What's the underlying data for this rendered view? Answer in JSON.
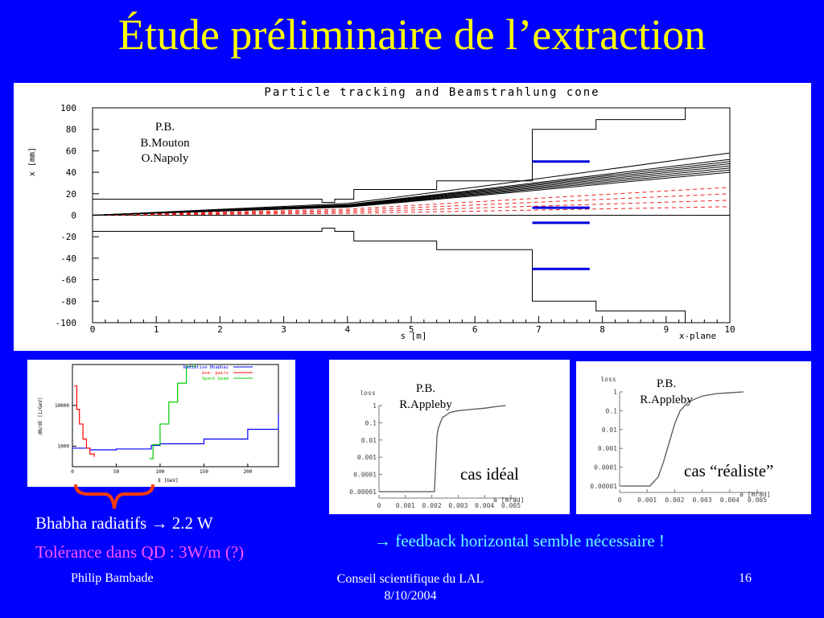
{
  "slide": {
    "title": "Étude préliminaire de l’extraction",
    "footer_left": "Philip Bambade",
    "footer_center_line1": "Conseil scientifique du LAL",
    "footer_center_line2": "8/10/2004",
    "page_number": "16"
  },
  "colors": {
    "background": "#0000ff",
    "title": "#ffff00",
    "highlight": "#ff55ff",
    "feedback": "#66ffff",
    "brace": "#ff3b00"
  },
  "tracking_plot": {
    "authors": [
      "P.B.",
      "B.Mouton",
      "O.Napoly"
    ],
    "chart_data": {
      "type": "line",
      "title": "Particle tracking and Beamstrahlung cone",
      "xlabel": "s [m]",
      "ylabel": "x [mm]",
      "corner_label": "x-plane",
      "xlim": [
        0,
        10
      ],
      "ylim": [
        -100,
        100
      ],
      "x_ticks": [
        "0",
        "1",
        "2",
        "3",
        "4",
        "5",
        "6",
        "7",
        "8",
        "9",
        "10"
      ],
      "y_ticks": [
        "100",
        "80",
        "60",
        "40",
        "20",
        "0",
        "-20",
        "-40",
        "-60",
        "-80",
        "-100"
      ],
      "aperture_upper": {
        "x": [
          0,
          3.6,
          3.6,
          3.8,
          3.8,
          4.1,
          4.1,
          5.4,
          5.4,
          6.9,
          6.9,
          7.9,
          7.9,
          9.3,
          9.3,
          10
        ],
        "y": [
          15,
          15,
          12,
          12,
          15,
          15,
          24,
          24,
          32,
          32,
          80,
          80,
          89,
          89,
          100,
          100
        ]
      },
      "aperture_lower": {
        "x": [
          0,
          3.6,
          3.6,
          3.8,
          3.8,
          4.1,
          4.1,
          5.4,
          5.4,
          6.9,
          6.9,
          7.9,
          7.9,
          9.3,
          9.3,
          10
        ],
        "y": [
          -15,
          -15,
          -12,
          -12,
          -15,
          -15,
          -24,
          -24,
          -32,
          -32,
          -80,
          -80,
          -89,
          -89,
          -100,
          -100
        ]
      },
      "beam_fan_end_values": [
        58,
        52,
        50,
        48,
        46,
        44,
        42,
        40
      ],
      "beamstrahlung_cone_end_values": [
        26,
        20,
        14,
        8
      ],
      "highlight_segments": [
        {
          "x": [
            6.9,
            7.8
          ],
          "y": 50
        },
        {
          "x": [
            6.9,
            7.8
          ],
          "y": 7
        },
        {
          "x": [
            6.9,
            7.8
          ],
          "y": -7
        },
        {
          "x": [
            6.9,
            7.8
          ],
          "y": -50
        }
      ]
    }
  },
  "spectrum_plot": {
    "chart_data": {
      "type": "line",
      "xlabel": "E [GeV]",
      "ylabel": "dN/dE [1/GeV]",
      "x_ticks": [
        "0",
        "50",
        "100",
        "150",
        "200"
      ],
      "y_ticks": [
        "10000",
        "1000"
      ],
      "legend_position": "top-right",
      "series": [
        {
          "name": "Radiative Bhabhas",
          "color": "#0000ff",
          "x": [
            0,
            20,
            50,
            90,
            100,
            150,
            200,
            235
          ],
          "y": [
            900,
            820,
            860,
            1050,
            1150,
            1500,
            2600,
            6500
          ]
        },
        {
          "name": "e+e- pairs",
          "color": "#ff0000",
          "x": [
            2,
            5,
            8,
            12,
            16,
            20,
            25
          ],
          "y": [
            30000,
            8000,
            3500,
            1500,
            900,
            650,
            550
          ]
        },
        {
          "name": "Spent beam",
          "color": "#00cc00",
          "x": [
            88,
            92,
            100,
            110,
            120,
            130,
            140
          ],
          "y": [
            500,
            1100,
            3500,
            12000,
            35000,
            90000,
            200000
          ]
        }
      ]
    }
  },
  "loss_ideal": {
    "authors": [
      "P.B.",
      "R.Appleby"
    ],
    "caption": "cas idéal",
    "chart_data": {
      "type": "line",
      "ylabel": "loss",
      "xlabel": "a [mrad]",
      "x_ticks": [
        "0",
        "0.001",
        "0.002",
        "0.003",
        "0.004",
        "0.005"
      ],
      "y_ticks": [
        "1",
        "0.1",
        "0.01",
        "0.001",
        "0.0001",
        "0.00001"
      ],
      "x": [
        0,
        0.0021,
        0.0022,
        0.00225,
        0.0024,
        0.0027,
        0.003,
        0.0035,
        0.004,
        0.0045,
        0.0048
      ],
      "y": [
        1e-05,
        1e-05,
        0.02,
        0.05,
        0.2,
        0.4,
        0.5,
        0.6,
        0.7,
        0.9,
        1
      ]
    }
  },
  "loss_realistic": {
    "authors": [
      "P.B.",
      "R.Appleby"
    ],
    "caption": "cas “réaliste”",
    "chart_data": {
      "type": "line",
      "ylabel": "loss",
      "xlabel": "a [mrad]",
      "x_ticks": [
        "0",
        "0.001",
        "0.002",
        "0.003",
        "0.004",
        "0.005"
      ],
      "y_ticks": [
        "1",
        "0.1",
        "0.01",
        "0.001",
        "0.0001",
        "0.00001"
      ],
      "x": [
        0,
        0.0011,
        0.0014,
        0.0016,
        0.0018,
        0.002,
        0.0022,
        0.0025,
        0.003,
        0.0035,
        0.004,
        0.0045
      ],
      "y": [
        1e-05,
        1e-05,
        3e-05,
        0.0002,
        0.002,
        0.02,
        0.1,
        0.3,
        0.6,
        0.8,
        0.9,
        1
      ]
    }
  },
  "texts": {
    "bhabha_prefix": "Bhabha radiatifs ",
    "arrow": "→",
    "bhabha_value": " 2.2 W",
    "tolerance": "Tolérance dans QD : 3W/m (?)",
    "feedback_text": " feedback horizontal semble nécessaire !"
  }
}
